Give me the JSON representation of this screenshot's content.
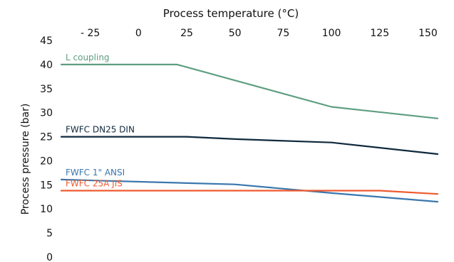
{
  "chart_data": {
    "type": "line",
    "title": "Process temperature (°C)",
    "ylabel": "Process pressure (bar)",
    "xlabel": "",
    "xlim": [
      -40,
      155
    ],
    "ylim": [
      0,
      45
    ],
    "x_ticks": [
      {
        "value": -25,
        "label": "- 25"
      },
      {
        "value": 0,
        "label": "0"
      },
      {
        "value": 25,
        "label": "25"
      },
      {
        "value": 50,
        "label": "50"
      },
      {
        "value": 75,
        "label": "75"
      },
      {
        "value": 100,
        "label": "100"
      },
      {
        "value": 125,
        "label": "125"
      },
      {
        "value": 150,
        "label": "150"
      }
    ],
    "y_ticks": [
      {
        "value": 0,
        "label": "0"
      },
      {
        "value": 5,
        "label": "5"
      },
      {
        "value": 10,
        "label": "10"
      },
      {
        "value": 15,
        "label": "15"
      },
      {
        "value": 20,
        "label": "20"
      },
      {
        "value": 25,
        "label": "25"
      },
      {
        "value": 30,
        "label": "30"
      },
      {
        "value": 35,
        "label": "35"
      },
      {
        "value": 40,
        "label": "40"
      },
      {
        "value": 45,
        "label": "45"
      }
    ],
    "grid": false,
    "legend": "inline labels above lines",
    "series": [
      {
        "name": "L coupling",
        "color": "#5d9e80",
        "x": [
          -40,
          20,
          100,
          155
        ],
        "y": [
          40,
          40,
          31.2,
          28.8
        ]
      },
      {
        "name": "FWFC DN25 DIN",
        "color": "#0f2a3d",
        "x": [
          -40,
          25,
          50,
          100,
          155
        ],
        "y": [
          25,
          25,
          24.5,
          23.8,
          21.4
        ]
      },
      {
        "name": "FWFC 1\" ANSI",
        "color": "#3a77ad",
        "x": [
          -40,
          50,
          100,
          155
        ],
        "y": [
          16.1,
          15.1,
          13.3,
          11.5
        ]
      },
      {
        "name": "FWFC 25A JIS",
        "color": "#ef5a2e",
        "x": [
          -40,
          125,
          155
        ],
        "y": [
          13.8,
          13.8,
          13.1
        ]
      }
    ]
  }
}
